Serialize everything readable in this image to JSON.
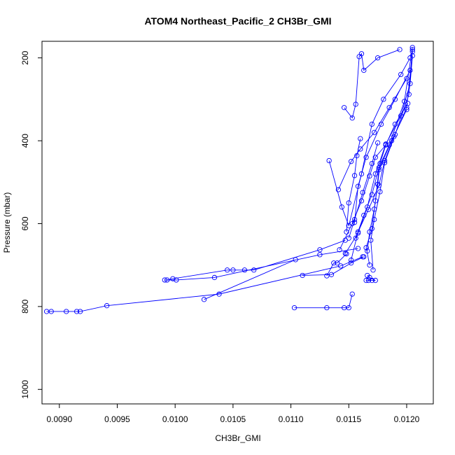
{
  "chart_data": {
    "type": "line",
    "title": "ATOM4 Northeast_Pacific_2 CH3Br_GMI",
    "xlabel": "CH3Br_GMI",
    "ylabel": "Pressure (mbar)",
    "xlim": [
      0.00885,
      0.01223
    ],
    "ylim": [
      1035,
      160
    ],
    "y_reversed": true,
    "x_ticks": [
      "0.0090",
      "0.0095",
      "0.0100",
      "0.0105",
      "0.0110",
      "0.0115",
      "0.0120"
    ],
    "x_tick_values": [
      0.009,
      0.0095,
      0.01,
      0.0105,
      0.011,
      0.0115,
      0.012
    ],
    "y_ticks": [
      "200",
      "400",
      "600",
      "800",
      "1000"
    ],
    "y_tick_values": [
      200,
      400,
      600,
      800,
      1000
    ],
    "grid": false,
    "series_color": "#0000ff",
    "series": [
      {
        "x": [
          0.01025,
          0.01104
        ],
        "y": [
          783,
          687
        ]
      },
      {
        "x": [
          0.00889,
          0.00893,
          0.00906,
          0.00915,
          0.00918,
          0.00941,
          0.01038,
          0.01143,
          0.01162
        ],
        "y": [
          812,
          812,
          812,
          812,
          812,
          798,
          770,
          702,
          680
        ]
      },
      {
        "x": [
          0.00991,
          0.01001,
          0.01034,
          0.01125,
          0.01158
        ],
        "y": [
          736,
          736,
          730,
          675,
          660
        ]
      },
      {
        "x": [
          0.00993,
          0.00998,
          0.01045,
          0.0105,
          0.0106,
          0.01068,
          0.01125,
          0.01147
        ],
        "y": [
          736,
          733,
          712,
          712,
          712,
          712,
          663,
          640
        ]
      },
      {
        "x": [
          0.01103,
          0.01131,
          0.01146,
          0.0115,
          0.01153
        ],
        "y": [
          803,
          803,
          803,
          803,
          770
        ]
      },
      {
        "x": [
          0.0111,
          0.01135,
          0.01152,
          0.01163
        ],
        "y": [
          725,
          723,
          695,
          680
        ]
      },
      {
        "x": [
          0.01131,
          0.01137,
          0.0114,
          0.01148
        ],
        "y": [
          726,
          695,
          695,
          673
        ]
      },
      {
        "x": [
          0.01165,
          0.01167,
          0.0117,
          0.01173,
          0.01168,
          0.01166
        ],
        "y": [
          737,
          737,
          737,
          737,
          730,
          725
        ]
      },
      {
        "x": [
          0.01133,
          0.01144,
          0.0115,
          0.01161,
          0.0117,
          0.0118,
          0.01195,
          0.01203
        ],
        "y": [
          448,
          560,
          605,
          480,
          360,
          300,
          240,
          200
        ]
      },
      {
        "x": [
          0.01141,
          0.01152,
          0.0116,
          0.01172,
          0.01185,
          0.012
        ],
        "y": [
          518,
          450,
          420,
          380,
          320,
          250
        ]
      },
      {
        "x": [
          0.01155,
          0.01158,
          0.01165,
          0.01178,
          0.0119,
          0.01203
        ],
        "y": [
          597,
          510,
          440,
          360,
          300,
          230
        ]
      },
      {
        "x": [
          0.01148,
          0.0115,
          0.01155,
          0.01157,
          0.0116
        ],
        "y": [
          620,
          550,
          484,
          436,
          395
        ]
      },
      {
        "x": [
          0.01146,
          0.01153,
          0.01156,
          0.01159,
          0.01161,
          0.01163,
          0.01175,
          0.01194
        ],
        "y": [
          320,
          345,
          312,
          197,
          190,
          230,
          200,
          180
        ]
      },
      {
        "x": [
          0.01166,
          0.01168,
          0.01172,
          0.01175,
          0.01177,
          0.01182,
          0.0119,
          0.01201
        ],
        "y": [
          666,
          620,
          565,
          505,
          455,
          410,
          360,
          310
        ]
      },
      {
        "x": [
          0.01152,
          0.01158,
          0.01167,
          0.01176,
          0.01181,
          0.01189,
          0.012,
          0.01205
        ],
        "y": [
          688,
          620,
          566,
          508,
          448,
          390,
          320,
          185
        ]
      },
      {
        "x": [
          0.01147,
          0.01158,
          0.01166,
          0.01173,
          0.01182,
          0.01195,
          0.01203,
          0.01205
        ],
        "y": [
          672,
          623,
          560,
          480,
          408,
          340,
          262,
          195
        ]
      },
      {
        "x": [
          0.01156,
          0.01163,
          0.0117,
          0.01176,
          0.01185,
          0.01198,
          0.01205
        ],
        "y": [
          635,
          580,
          530,
          465,
          410,
          305,
          175
        ]
      },
      {
        "x": [
          0.01168,
          0.01165,
          0.0117,
          0.01173,
          0.01176,
          0.01187,
          0.012
        ],
        "y": [
          700,
          658,
          612,
          545,
          470,
          400,
          325
        ]
      },
      {
        "x": [
          0.01171,
          0.01169,
          0.01172,
          0.01177,
          0.01181,
          0.0119,
          0.01202,
          0.01205
        ],
        "y": [
          712,
          640,
          590,
          523,
          453,
          385,
          288,
          180
        ]
      },
      {
        "x": [
          0.01142,
          0.01153,
          0.01161,
          0.01168,
          0.01173,
          0.01182
        ],
        "y": [
          663,
          600,
          545,
          485,
          440,
          410
        ]
      },
      {
        "x": [
          0.0115,
          0.01155,
          0.01162,
          0.0117,
          0.01175
        ],
        "y": [
          635,
          590,
          525,
          455,
          405
        ]
      }
    ]
  }
}
